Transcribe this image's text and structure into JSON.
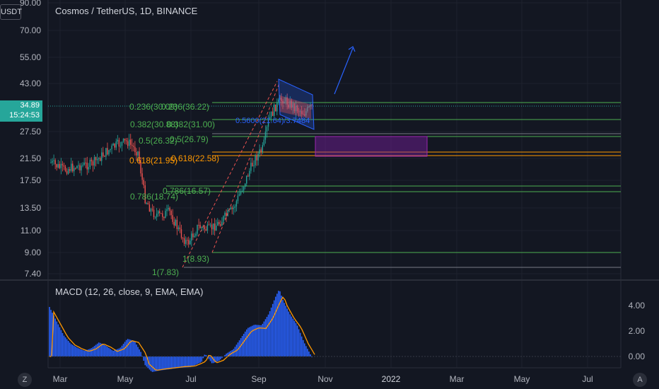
{
  "header": {
    "symbol_title": "Cosmos / TetherUS, 1D, BINANCE",
    "currency": "USDT",
    "last_price": "34.89",
    "countdown": "15:24:53"
  },
  "price_axis": {
    "ticks": [
      "90.00",
      "70.00",
      "55.00",
      "43.00",
      "34.89",
      "27.50",
      "21.50",
      "17.50",
      "13.50",
      "11.00",
      "9.00",
      "7.40"
    ]
  },
  "time_axis": {
    "ticks": [
      "Mar",
      "May",
      "Jul",
      "Sep",
      "Nov",
      "2022",
      "Mar",
      "May",
      "Jul"
    ]
  },
  "macd": {
    "title": "MACD (12, 26, close, 9, EMA, EMA)",
    "axis_ticks": [
      "4.00",
      "2.00",
      "0.00"
    ]
  },
  "fib_labels": {
    "left_set": [
      "0.236(30.09)",
      "0.382(30.88)",
      "0.5(26.32)",
      "0.618(21.95)",
      "0.786(18.74)",
      "1(7.83)"
    ],
    "right_set": [
      "0.236(36.22)",
      "0.382(31.00)",
      "0.5(26.79)",
      "0.618(22.58)",
      "0.786(16.57)",
      "1(8.93)"
    ],
    "channel_text": "0.5600(21.64)/3.7484"
  },
  "corners": {
    "left": "Z",
    "right": "A"
  },
  "chart_data": {
    "type": "candlestick",
    "title": "Cosmos / TetherUS, 1D, BINANCE",
    "y_scale": "log",
    "y_ticks": [
      90,
      70,
      55,
      43,
      27.5,
      21.5,
      17.5,
      13.5,
      11,
      9,
      7.4
    ],
    "x_ticks": [
      "Mar",
      "May",
      "Jul",
      "Sep",
      "Nov",
      "2022",
      "Mar",
      "May",
      "Jul"
    ],
    "price_path_approx": [
      {
        "x": "Feb",
        "close": 22
      },
      {
        "x": "Mar",
        "close": 21
      },
      {
        "x": "Apr",
        "close": 24
      },
      {
        "x": "May",
        "close": 27
      },
      {
        "x": "Jun",
        "close": 14
      },
      {
        "x": "Jul",
        "close": 10
      },
      {
        "x": "Aug",
        "close": 14
      },
      {
        "x": "Sep",
        "close": 38
      },
      {
        "x": "Oct",
        "close": 33
      }
    ],
    "last_price": 34.89,
    "fib_levels": [
      {
        "level": "0.236",
        "value": 36.22
      },
      {
        "level": "0.382",
        "value": 31.0
      },
      {
        "level": "0.5",
        "value": 26.79
      },
      {
        "level": "0.618",
        "value": 22.58
      },
      {
        "level": "0.786",
        "value": 16.57
      },
      {
        "level": "1",
        "value": 8.93
      }
    ],
    "macd_axis_ticks": [
      4.0,
      2.0,
      0.0
    ]
  }
}
